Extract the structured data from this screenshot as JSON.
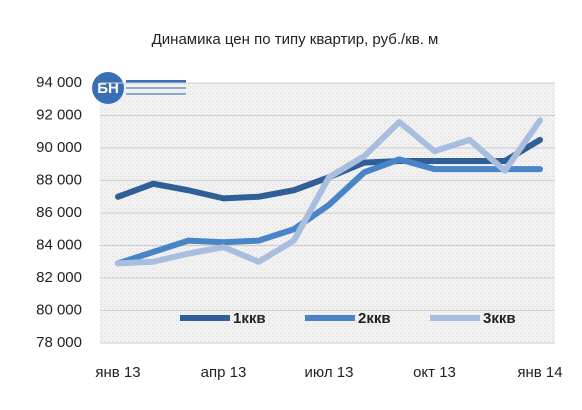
{
  "logo": "БН",
  "chart_data": {
    "type": "line",
    "title": "Динамика цен по типу квартир, руб./кв. м",
    "categories": [
      "янв 13",
      null,
      null,
      "апр 13",
      null,
      null,
      "июл 13",
      null,
      null,
      "окт 13",
      null,
      null,
      "янв 14"
    ],
    "series": [
      {
        "name": "1ккв",
        "color": "#2f5f96",
        "values": [
          87000,
          87800,
          87400,
          86900,
          87000,
          87400,
          88200,
          89100,
          89200,
          89200,
          89200,
          89200,
          90500
        ]
      },
      {
        "name": "2ккв",
        "color": "#4a84c8",
        "values": [
          82900,
          83600,
          84300,
          84200,
          84300,
          85000,
          86500,
          88500,
          89300,
          88700,
          88700,
          88700,
          88700
        ]
      },
      {
        "name": "3ккв",
        "color": "#a8bedf",
        "values": [
          82900,
          83000,
          83500,
          83900,
          83000,
          84300,
          88200,
          89500,
          91600,
          89800,
          90500,
          88600,
          91700
        ]
      }
    ],
    "ylim": [
      78000,
      94000
    ],
    "yticks": [
      {
        "value": 78000,
        "label": "78 000"
      },
      {
        "value": 80000,
        "label": "80 000"
      },
      {
        "value": 82000,
        "label": "82 000"
      },
      {
        "value": 84000,
        "label": "84 000"
      },
      {
        "value": 86000,
        "label": "86 000"
      },
      {
        "value": 88000,
        "label": "88 000"
      },
      {
        "value": 90000,
        "label": "90 000"
      },
      {
        "value": 92000,
        "label": "92 000"
      },
      {
        "value": 94000,
        "label": "94 000"
      }
    ],
    "grid": true
  }
}
